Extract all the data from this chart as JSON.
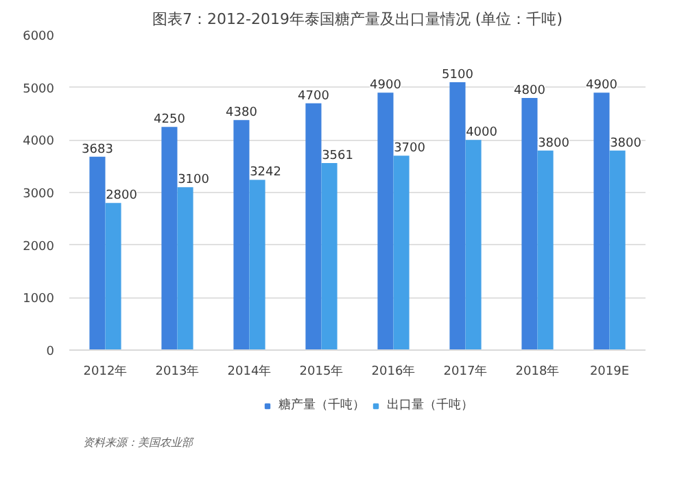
{
  "chart_data": {
    "type": "bar",
    "title": "图表7：2012-2019年泰国糖产量及出口量情况 (单位：千吨)",
    "categories": [
      "2012年",
      "2013年",
      "2014年",
      "2015年",
      "2016年",
      "2017年",
      "2018年",
      "2019E"
    ],
    "series": [
      {
        "name": "糖产量（千吨）",
        "color": "#3f82de",
        "values": [
          3683,
          4250,
          4380,
          4700,
          4900,
          5100,
          4800,
          4900
        ]
      },
      {
        "name": "出口量（千吨）",
        "color": "#44a1e8",
        "values": [
          2800,
          3100,
          3242,
          3561,
          3700,
          4000,
          3800,
          3800
        ]
      }
    ],
    "ylim": [
      0,
      6000
    ],
    "yticks": [
      0,
      1000,
      2000,
      3000,
      4000,
      5000,
      6000
    ],
    "grid": "y",
    "legend": "bottom",
    "data_labels": true,
    "annotations": [
      "资料来源：美国农业部"
    ]
  }
}
